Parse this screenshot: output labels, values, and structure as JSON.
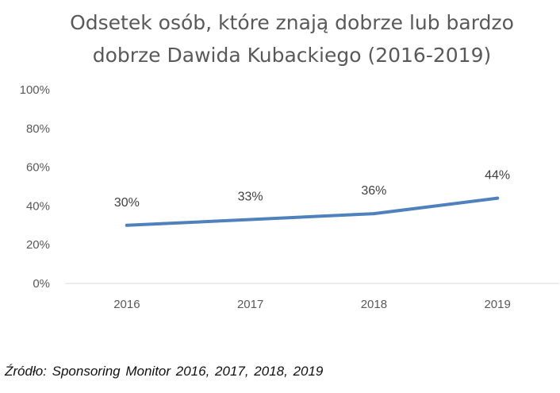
{
  "chart_data": {
    "type": "line",
    "title_lines": [
      "Odsetek osób, które znają dobrze lub bardzo",
      "dobrze Dawida Kubackiego (2016-2019)"
    ],
    "categories": [
      "2016",
      "2017",
      "2018",
      "2019"
    ],
    "series": [
      {
        "values": [
          30,
          33,
          36,
          44
        ],
        "data_labels": [
          "30%",
          "33%",
          "36%",
          "44%"
        ],
        "color": "#4f81bd"
      }
    ],
    "ylim": [
      0,
      100
    ],
    "y_ticks": [
      0,
      20,
      40,
      60,
      80,
      100
    ],
    "y_tick_labels": [
      "0%",
      "20%",
      "40%",
      "60%",
      "80%",
      "100%"
    ],
    "xlabel": "",
    "ylabel": "",
    "grid": false,
    "axis_color": "#d9d9d9"
  },
  "source": "Źródło: Sponsoring Monitor 2016, 2017, 2018, 2019"
}
